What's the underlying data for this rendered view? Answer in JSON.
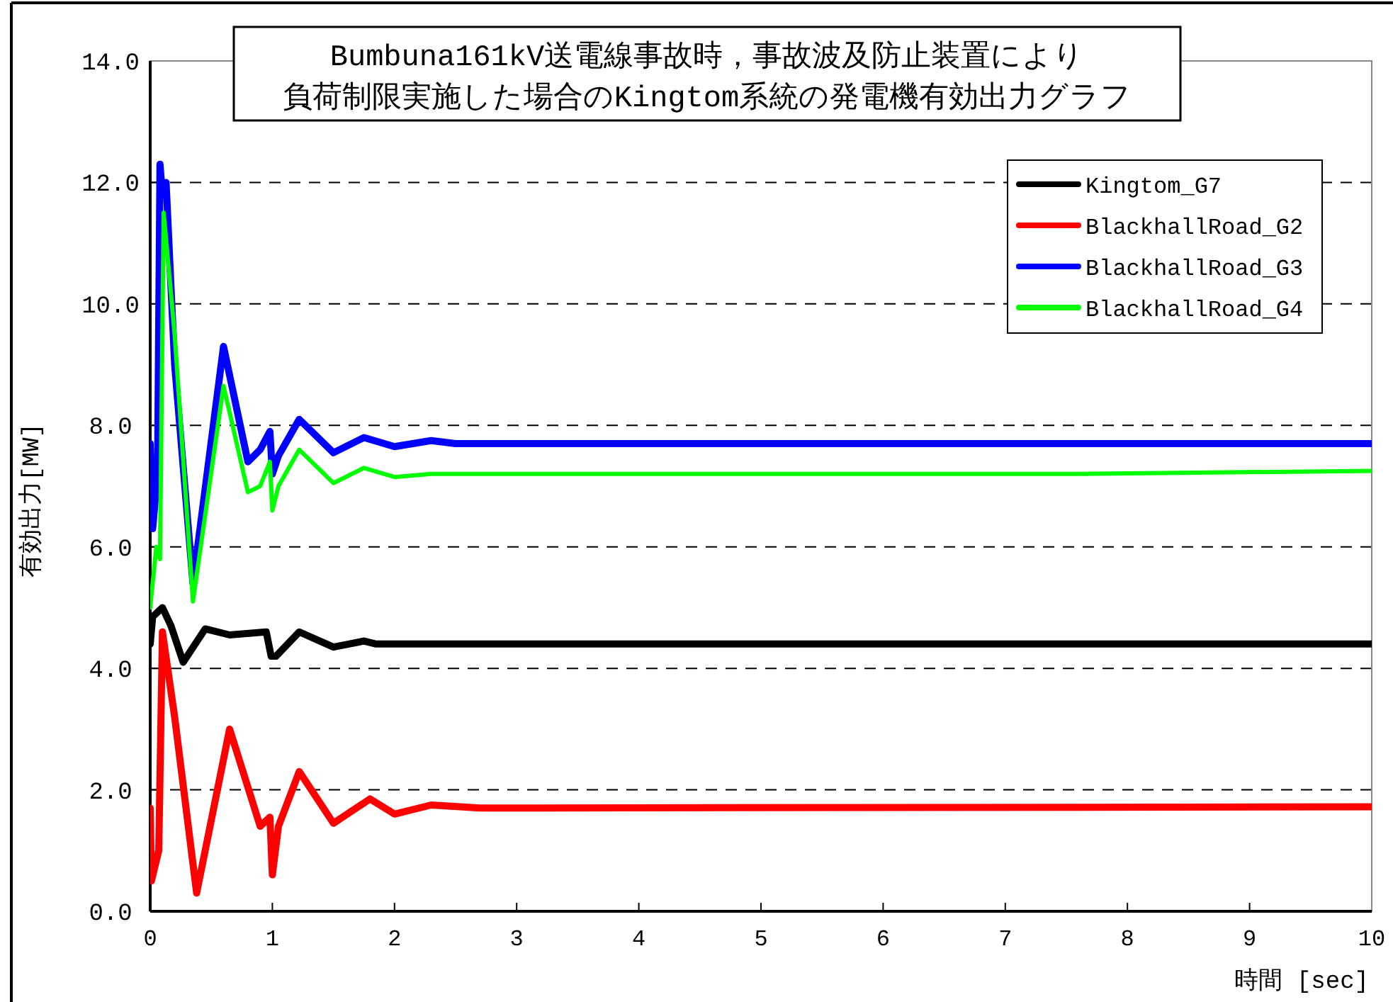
{
  "chart_data": {
    "type": "line",
    "title": "Bumbuna161kV送電線事故時，事故波及防止装置により",
    "subtitle": "負荷制限実施した場合のKingtom系統の発電機有効出力グラフ",
    "xlabel": "時間 [sec]",
    "ylabel": "有効出力[MW]",
    "xlim": [
      0,
      10
    ],
    "xticks": [
      0,
      1,
      2,
      3,
      4,
      5,
      6,
      7,
      8,
      9,
      10
    ],
    "ylim": [
      0,
      14
    ],
    "yticks": [
      {
        "value": 0,
        "label": "0.0"
      },
      {
        "value": 2,
        "label": "2.0"
      },
      {
        "value": 4,
        "label": "4.0"
      },
      {
        "value": 6,
        "label": "6.0"
      },
      {
        "value": 8,
        "label": "8.0"
      },
      {
        "value": 10,
        "label": "10.0"
      },
      {
        "value": 12,
        "label": "12.0"
      },
      {
        "value": 14,
        "label": "14.0"
      }
    ],
    "grid": "y",
    "legend": "top right",
    "line_style": "solid",
    "marker": "none",
    "series": [
      {
        "name": "Kingtom_G7",
        "color": "#000000",
        "x": [
          0,
          0.02,
          0.1,
          0.17,
          0.27,
          0.45,
          0.65,
          0.95,
          0.99,
          1.03,
          1.22,
          1.5,
          1.75,
          1.85,
          10
        ],
        "values": [
          4.4,
          4.85,
          5.0,
          4.7,
          4.1,
          4.65,
          4.55,
          4.6,
          4.2,
          4.2,
          4.6,
          4.35,
          4.45,
          4.4,
          4.4
        ]
      },
      {
        "name": "BlackhallRoad_G2",
        "color": "#ff0000",
        "x": [
          0,
          0.01,
          0.07,
          0.1,
          0.2,
          0.38,
          0.65,
          0.9,
          0.98,
          1.0,
          1.05,
          1.22,
          1.5,
          1.8,
          2.0,
          2.3,
          2.7,
          10
        ],
        "values": [
          1.7,
          0.5,
          1.0,
          4.6,
          3.2,
          0.3,
          3.0,
          1.4,
          1.55,
          0.6,
          1.4,
          2.3,
          1.45,
          1.85,
          1.6,
          1.75,
          1.7,
          1.72
        ]
      },
      {
        "name": "BlackhallRoad_G3",
        "color": "#0000ff",
        "x": [
          0,
          0.02,
          0.06,
          0.08,
          0.1,
          0.13,
          0.2,
          0.35,
          0.6,
          0.8,
          0.9,
          0.98,
          1.0,
          1.05,
          1.22,
          1.5,
          1.75,
          2.0,
          2.3,
          2.5,
          10
        ],
        "values": [
          7.7,
          6.3,
          7.2,
          12.3,
          11.8,
          12.0,
          9.0,
          5.4,
          9.3,
          7.4,
          7.6,
          7.9,
          7.2,
          7.5,
          8.1,
          7.55,
          7.8,
          7.65,
          7.75,
          7.7,
          7.7
        ]
      },
      {
        "name": "BlackhallRoad_G4",
        "color": "#00ff00",
        "x": [
          0,
          0.05,
          0.08,
          0.11,
          0.2,
          0.35,
          0.6,
          0.8,
          0.9,
          0.98,
          1.0,
          1.05,
          1.22,
          1.5,
          1.75,
          2.0,
          2.3,
          7.5,
          10
        ],
        "values": [
          5.0,
          6.0,
          5.8,
          11.5,
          9.5,
          5.1,
          8.65,
          6.9,
          7.0,
          7.4,
          6.6,
          7.0,
          7.6,
          7.05,
          7.3,
          7.15,
          7.2,
          7.2,
          7.25
        ]
      }
    ]
  }
}
